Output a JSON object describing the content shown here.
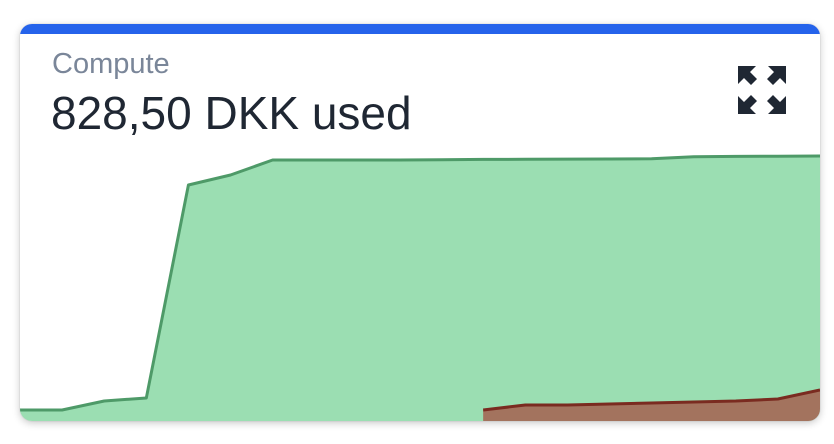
{
  "card": {
    "title": "Compute",
    "value": "828,50 DKK used",
    "expand_icon": "expand-arrows-icon"
  },
  "colors": {
    "accent": "#2563eb",
    "series_1_fill": "#9bdeb2",
    "series_1_line": "#4e9a68",
    "series_2_fill": "#a3735e",
    "series_2_line": "#7a2b20"
  },
  "chart_data": {
    "type": "area",
    "xlabel": "",
    "ylabel": "",
    "x": [
      0,
      1,
      2,
      3,
      4,
      5,
      6,
      7,
      8,
      9,
      10,
      11,
      12,
      13,
      14,
      15,
      16,
      17,
      18,
      19
    ],
    "ylim": [
      0,
      260
    ],
    "grid": false,
    "legend": "none",
    "series": [
      {
        "values": [
          0,
          0,
          9,
          12,
          225,
          235,
          250,
          250,
          250,
          250,
          250.3,
          250.6,
          250.7,
          250.9,
          251,
          251.2,
          253.3,
          253.6,
          253.8,
          254
        ]
      },
      {
        "values": [
          null,
          null,
          null,
          null,
          null,
          null,
          null,
          null,
          null,
          null,
          null,
          0,
          5,
          5,
          6,
          7,
          8,
          9,
          11,
          20
        ]
      }
    ]
  }
}
